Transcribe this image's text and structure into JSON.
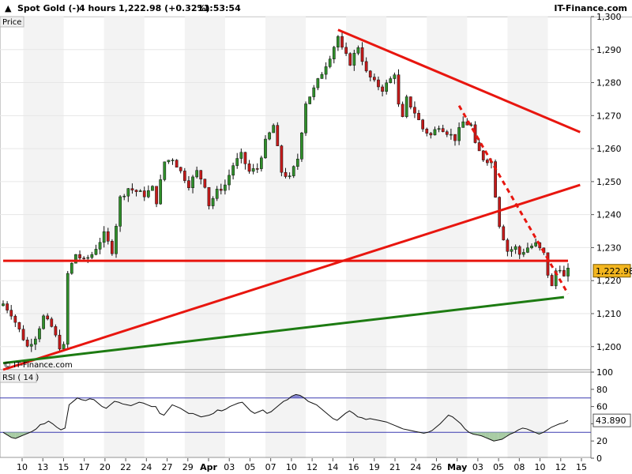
{
  "header": {
    "instrument": "Spot Gold (-)",
    "timeframe": "4 hours",
    "price_change": "1,222.98 (+0.32%)",
    "time": "11:53:54",
    "brand": "IT-Finance.com"
  },
  "price_panel": {
    "label": "Price",
    "watermark": "© IT-Finance.com",
    "last_price_label": "1,222.98"
  },
  "rsi_panel": {
    "label": "RSI ( 14 )",
    "last_value_label": "43.890"
  },
  "colors": {
    "trend_red": "#e8160f",
    "trend_green": "#1d7b12",
    "candle_up": "#2f8f2a",
    "candle_down": "#c41a1a",
    "last_price_box": "#f3b61f",
    "rsi_fill": "#9ec79a"
  },
  "chart_data": [
    {
      "type": "candlestick",
      "instrument": "Spot Gold",
      "timeframe": "4 hours",
      "y_axis": {
        "range": [
          1193,
          1300
        ],
        "ticks": [
          1200,
          1210,
          1220,
          1230,
          1240,
          1250,
          1260,
          1270,
          1280,
          1290,
          1300
        ],
        "tick_labels": [
          "1,200",
          "1,210",
          "1,220",
          "1,230",
          "1,240",
          "1,250",
          "1,260",
          "1,270",
          "1,280",
          "1,290",
          "1,300"
        ]
      },
      "x_axis": {
        "tick_labels": [
          "10",
          "13",
          "15",
          "17",
          "20",
          "22",
          "24",
          "27",
          "29",
          "Apr",
          "03",
          "05",
          "07",
          "10",
          "12",
          "14",
          "16",
          "19",
          "21",
          "24",
          "26",
          "May",
          "03",
          "05",
          "08",
          "10",
          "12",
          "15"
        ],
        "bold_labels": [
          "Apr",
          "May"
        ]
      },
      "last_price": 1222.98,
      "close_path": [
        [
          0,
          1213
        ],
        [
          2,
          1210
        ],
        [
          4,
          1205
        ],
        [
          6,
          1200
        ],
        [
          8,
          1203
        ],
        [
          10,
          1209
        ],
        [
          12,
          1206
        ],
        [
          14,
          1200
        ],
        [
          15,
          1200
        ],
        [
          16,
          1222
        ],
        [
          18,
          1228
        ],
        [
          20,
          1226
        ],
        [
          22,
          1228
        ],
        [
          24,
          1232
        ],
        [
          25,
          1234
        ],
        [
          27,
          1229
        ],
        [
          29,
          1245
        ],
        [
          31,
          1248
        ],
        [
          33,
          1247
        ],
        [
          35,
          1246
        ],
        [
          37,
          1248
        ],
        [
          38,
          1244
        ],
        [
          40,
          1256
        ],
        [
          42,
          1257
        ],
        [
          44,
          1253
        ],
        [
          46,
          1249
        ],
        [
          48,
          1253
        ],
        [
          50,
          1249
        ],
        [
          51,
          1243
        ],
        [
          53,
          1247
        ],
        [
          55,
          1249
        ],
        [
          57,
          1255
        ],
        [
          59,
          1258
        ],
        [
          61,
          1253
        ],
        [
          63,
          1254
        ],
        [
          65,
          1262
        ],
        [
          67,
          1267
        ],
        [
          69,
          1253
        ],
        [
          71,
          1251
        ],
        [
          73,
          1257
        ],
        [
          75,
          1274
        ],
        [
          77,
          1278
        ],
        [
          79,
          1283
        ],
        [
          81,
          1288
        ],
        [
          83,
          1294
        ],
        [
          84,
          1290
        ],
        [
          86,
          1286
        ],
        [
          88,
          1291
        ],
        [
          90,
          1283
        ],
        [
          92,
          1280
        ],
        [
          94,
          1278
        ],
        [
          96,
          1281
        ],
        [
          97,
          1283
        ],
        [
          98,
          1273
        ],
        [
          99,
          1269
        ],
        [
          100,
          1275
        ],
        [
          102,
          1271
        ],
        [
          104,
          1266
        ],
        [
          106,
          1264
        ],
        [
          108,
          1267
        ],
        [
          110,
          1265
        ],
        [
          112,
          1263
        ],
        [
          114,
          1268
        ],
        [
          116,
          1267
        ],
        [
          117,
          1261
        ],
        [
          119,
          1257
        ],
        [
          121,
          1256
        ],
        [
          122,
          1246
        ],
        [
          123,
          1237
        ],
        [
          125,
          1229
        ],
        [
          127,
          1230
        ],
        [
          128,
          1228
        ],
        [
          130,
          1230
        ],
        [
          132,
          1231
        ],
        [
          134,
          1228
        ],
        [
          135,
          1222
        ],
        [
          136,
          1218
        ],
        [
          137,
          1223
        ],
        [
          138,
          1224
        ],
        [
          139,
          1221
        ],
        [
          140,
          1222.98
        ]
      ],
      "trend_lines": [
        {
          "color": "red",
          "style": "solid",
          "from": [
            83,
            1296
          ],
          "to": [
            143,
            1265
          ]
        },
        {
          "color": "red",
          "style": "solid",
          "from": [
            0,
            1193
          ],
          "to": [
            143,
            1249
          ]
        },
        {
          "color": "red",
          "style": "solid",
          "from": [
            0,
            1226
          ],
          "to": [
            140,
            1226
          ]
        },
        {
          "color": "red",
          "style": "dashed",
          "from": [
            113,
            1273
          ],
          "to": [
            140,
            1216
          ]
        },
        {
          "color": "green",
          "style": "solid",
          "from": [
            0,
            1195
          ],
          "to": [
            139,
            1215
          ]
        }
      ]
    },
    {
      "type": "line",
      "name": "RSI ( 14 )",
      "y_axis": {
        "range": [
          0,
          100
        ],
        "ticks": [
          0,
          20,
          40,
          60,
          80,
          100
        ],
        "tick_labels": [
          "0",
          "20",
          "40",
          "60",
          "80",
          "100"
        ]
      },
      "levels": [
        30,
        70
      ],
      "last_value": 43.89,
      "values": [
        30,
        27,
        24,
        23,
        25,
        27,
        29,
        31,
        34,
        39,
        40,
        43,
        40,
        36,
        33,
        35,
        62,
        66,
        70,
        68,
        67,
        69,
        68,
        64,
        60,
        58,
        62,
        66,
        65,
        63,
        62,
        61,
        63,
        65,
        64,
        62,
        60,
        60,
        52,
        50,
        56,
        62,
        60,
        58,
        55,
        52,
        52,
        50,
        48,
        49,
        50,
        52,
        56,
        55,
        57,
        60,
        62,
        64,
        65,
        60,
        55,
        52,
        54,
        56,
        52,
        54,
        58,
        62,
        66,
        68,
        72,
        74,
        73,
        70,
        66,
        64,
        62,
        58,
        54,
        50,
        46,
        44,
        48,
        52,
        55,
        52,
        48,
        47,
        45,
        46,
        45,
        44,
        43,
        42,
        40,
        38,
        36,
        34,
        33,
        32,
        31,
        30,
        29,
        30,
        32,
        36,
        40,
        45,
        50,
        48,
        44,
        40,
        34,
        30,
        28,
        27,
        26,
        24,
        22,
        20,
        21,
        22,
        25,
        28,
        30,
        33,
        35,
        34,
        32,
        30,
        28,
        30,
        33,
        36,
        38,
        40,
        41,
        43.89
      ]
    }
  ]
}
